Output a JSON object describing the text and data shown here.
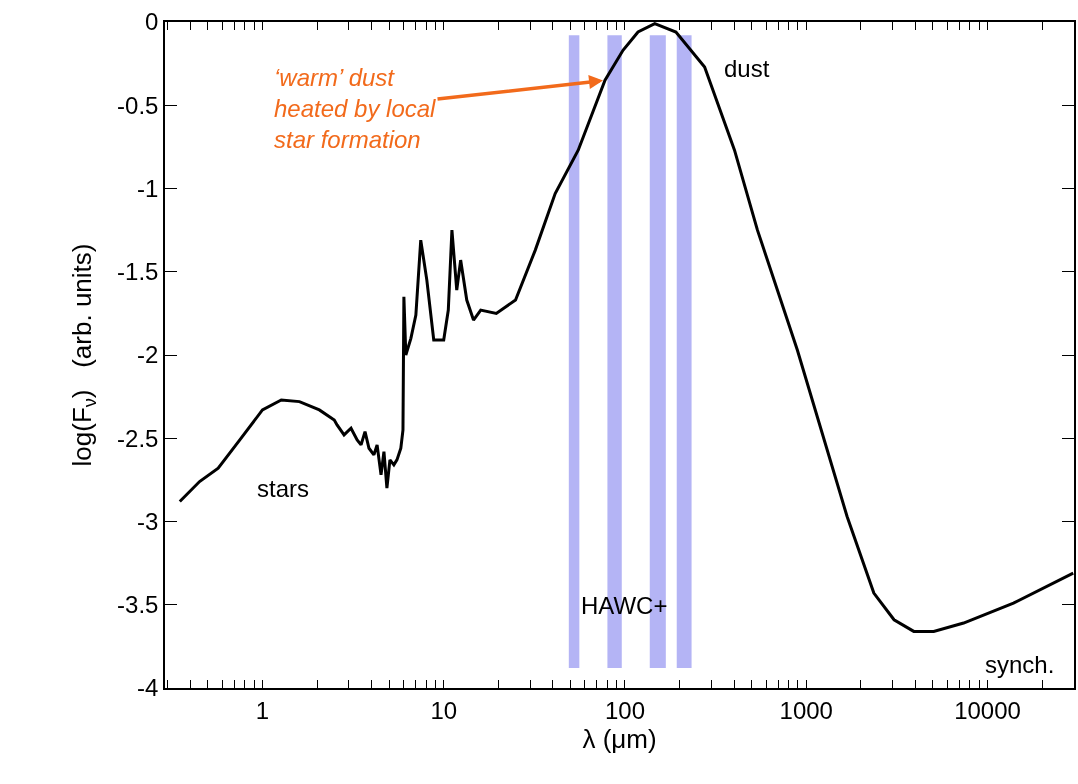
{
  "chart_data": {
    "type": "line",
    "xlabel": "λ (μm)",
    "ylabel": "log(F$_{ν}$)   (arb. units)",
    "log": "x",
    "grid": false,
    "marker": "none",
    "line_style": "solid",
    "xlim": [
      0.29,
      30000
    ],
    "ylim": [
      -4,
      0
    ],
    "xticks": [
      {
        "value": 0.3,
        "label": null
      },
      {
        "value": 0.4,
        "label": null
      },
      {
        "value": 0.5,
        "label": null
      },
      {
        "value": 0.6,
        "label": null
      },
      {
        "value": 0.7,
        "label": null
      },
      {
        "value": 0.8,
        "label": null
      },
      {
        "value": 0.9,
        "label": null
      },
      1,
      {
        "value": 2,
        "label": null
      },
      {
        "value": 3,
        "label": null
      },
      {
        "value": 4,
        "label": null
      },
      {
        "value": 5,
        "label": null
      },
      {
        "value": 6,
        "label": null
      },
      {
        "value": 7,
        "label": null
      },
      {
        "value": 8,
        "label": null
      },
      {
        "value": 9,
        "label": null
      },
      10,
      {
        "value": 20,
        "label": null
      },
      {
        "value": 30,
        "label": null
      },
      {
        "value": 40,
        "label": null
      },
      {
        "value": 50,
        "label": null
      },
      {
        "value": 60,
        "label": null
      },
      {
        "value": 70,
        "label": null
      },
      {
        "value": 80,
        "label": null
      },
      {
        "value": 90,
        "label": null
      },
      100,
      {
        "value": 200,
        "label": null
      },
      {
        "value": 300,
        "label": null
      },
      {
        "value": 400,
        "label": null
      },
      {
        "value": 500,
        "label": null
      },
      {
        "value": 600,
        "label": null
      },
      {
        "value": 700,
        "label": null
      },
      {
        "value": 800,
        "label": null
      },
      {
        "value": 900,
        "label": null
      },
      1000,
      {
        "value": 2000,
        "label": null
      },
      {
        "value": 3000,
        "label": null
      },
      {
        "value": 4000,
        "label": null
      },
      {
        "value": 5000,
        "label": null
      },
      {
        "value": 6000,
        "label": null
      },
      {
        "value": 7000,
        "label": null
      },
      {
        "value": 8000,
        "label": null
      },
      {
        "value": 9000,
        "label": null
      },
      10000,
      {
        "value": 20000,
        "label": null
      }
    ],
    "yticks": [
      0,
      -0.5,
      -1,
      -1.5,
      -2,
      -2.5,
      -3,
      -3.5,
      -4
    ],
    "series": [
      {
        "color": "#000000",
        "x": [
          0.35,
          0.45,
          0.57,
          0.75,
          1.0,
          1.27,
          1.6,
          2.06,
          2.49,
          2.58,
          2.82,
          3.08,
          3.33,
          3.5,
          3.68,
          3.87,
          4.12,
          4.29,
          4.51,
          4.68,
          4.86,
          5.05,
          5.31,
          5.52,
          5.8,
          5.96,
          6.03,
          6.18,
          6.59,
          7.02,
          7.47,
          8.07,
          8.81,
          10.0,
          10.6,
          11.1,
          11.8,
          12.4,
          13.4,
          14.6,
          16.0,
          19.5,
          24.9,
          32,
          41.2,
          55.2,
          77.6,
          97.5,
          118,
          146,
          191,
          275,
          402,
          538,
          893,
          1680,
          2360,
          3050,
          3920,
          5050,
          7380,
          13900,
          29700
        ],
        "values": [
          -2.88,
          -2.76,
          -2.68,
          -2.51,
          -2.33,
          -2.27,
          -2.28,
          -2.33,
          -2.39,
          -2.42,
          -2.48,
          -2.44,
          -2.51,
          -2.54,
          -2.46,
          -2.56,
          -2.6,
          -2.54,
          -2.72,
          -2.58,
          -2.8,
          -2.63,
          -2.66,
          -2.63,
          -2.56,
          -2.45,
          -1.65,
          -2.0,
          -1.9,
          -1.76,
          -1.31,
          -1.55,
          -1.91,
          -1.91,
          -1.73,
          -1.25,
          -1.61,
          -1.43,
          -1.67,
          -1.79,
          -1.73,
          -1.75,
          -1.67,
          -1.37,
          -1.03,
          -0.77,
          -0.35,
          -0.17,
          -0.06,
          -0.01,
          -0.06,
          -0.27,
          -0.77,
          -1.25,
          -1.97,
          -2.97,
          -3.43,
          -3.59,
          -3.66,
          -3.66,
          -3.61,
          -3.49,
          -3.31
        ]
      }
    ],
    "bands": [
      {
        "axis": "x",
        "from": 49,
        "to": 56,
        "color": "#b4b4f5"
      },
      {
        "axis": "x",
        "from": 80,
        "to": 96,
        "color": "#b4b4f5"
      },
      {
        "axis": "x",
        "from": 137,
        "to": 168,
        "color": "#b4b4f5"
      },
      {
        "axis": "x",
        "from": 193,
        "to": 233,
        "color": "#b4b4f5"
      }
    ],
    "annotations": [
      {
        "text": "‘warm’ dust\nheated by local\nstar formation",
        "x": 77.6,
        "y": -0.35
      },
      "stars",
      "dust",
      "synch.",
      "HAWC+"
    ]
  }
}
